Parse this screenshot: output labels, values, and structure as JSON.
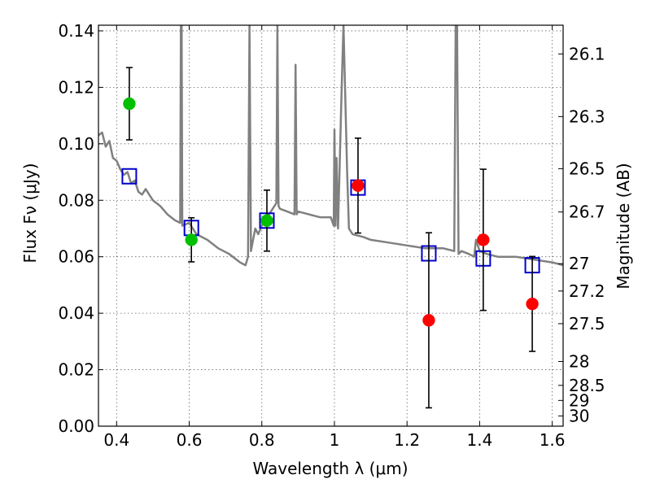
{
  "chart_data": {
    "type": "scatter",
    "xlabel": "Wavelength  λ (μm)",
    "ylabel": "Flux  Fν (μJy)",
    "ylabel_right": "Magnitude (AB)",
    "xlim": [
      0.35,
      1.63
    ],
    "ylim": [
      0.0,
      0.142
    ],
    "grid": true,
    "x_ticks": [
      0.4,
      0.6,
      0.8,
      1.0,
      1.2,
      1.4,
      1.6
    ],
    "x_tick_labels": [
      "0.4",
      "0.6",
      "0.8",
      "1",
      "1.2",
      "1.4",
      "1.6"
    ],
    "y_ticks": [
      0.0,
      0.02,
      0.04,
      0.06,
      0.08,
      0.1,
      0.12,
      0.14
    ],
    "y_tick_labels": [
      "0.00",
      "0.02",
      "0.04",
      "0.06",
      "0.08",
      "0.10",
      "0.12",
      "0.14"
    ],
    "right_ticks": [
      26.1,
      26.3,
      26.5,
      26.7,
      27,
      27.2,
      27.5,
      28,
      28.5,
      29,
      30
    ],
    "right_tick_labels": [
      "26.1",
      "26.3",
      "26.5",
      "26.7",
      "27",
      "27.2",
      "27.5",
      "28",
      "28.5",
      "29",
      "30"
    ],
    "series": [
      {
        "type": "line",
        "color": "#808080",
        "x": [
          0.35,
          0.36,
          0.37,
          0.38,
          0.39,
          0.4,
          0.41,
          0.42,
          0.43,
          0.44,
          0.45,
          0.46,
          0.47,
          0.48,
          0.5,
          0.52,
          0.54,
          0.56,
          0.575,
          0.577,
          0.579,
          0.581,
          0.6,
          0.62,
          0.65,
          0.68,
          0.71,
          0.74,
          0.755,
          0.762,
          0.766,
          0.77,
          0.776,
          0.782,
          0.79,
          0.8,
          0.81,
          0.82,
          0.83,
          0.84,
          0.843,
          0.846,
          0.85,
          0.87,
          0.89,
          0.893,
          0.896,
          0.9,
          0.93,
          0.96,
          0.99,
          0.998,
          1.0,
          1.003,
          1.006,
          1.01,
          1.02,
          1.025,
          1.035,
          1.04,
          1.05,
          1.08,
          1.1,
          1.15,
          1.2,
          1.25,
          1.3,
          1.33,
          1.334,
          1.338,
          1.342,
          1.35,
          1.37,
          1.385,
          1.39,
          1.4,
          1.42,
          1.45,
          1.5,
          1.55,
          1.6,
          1.63
        ],
        "y": [
          0.103,
          0.104,
          0.099,
          0.101,
          0.095,
          0.094,
          0.091,
          0.089,
          0.09,
          0.086,
          0.087,
          0.083,
          0.082,
          0.084,
          0.08,
          0.078,
          0.075,
          0.073,
          0.072,
          0.142,
          0.142,
          0.071,
          0.072,
          0.068,
          0.066,
          0.063,
          0.061,
          0.058,
          0.057,
          0.06,
          0.142,
          0.062,
          0.066,
          0.07,
          0.068,
          0.071,
          0.074,
          0.075,
          0.077,
          0.079,
          0.142,
          0.078,
          0.077,
          0.076,
          0.075,
          0.128,
          0.075,
          0.076,
          0.075,
          0.074,
          0.074,
          0.071,
          0.105,
          0.071,
          0.095,
          0.07,
          0.12,
          0.142,
          0.09,
          0.07,
          0.068,
          0.067,
          0.066,
          0.065,
          0.064,
          0.063,
          0.063,
          0.062,
          0.142,
          0.142,
          0.061,
          0.062,
          0.061,
          0.06,
          0.066,
          0.062,
          0.061,
          0.06,
          0.06,
          0.059,
          0.058,
          0.057
        ]
      },
      {
        "type": "markers",
        "marker": "square-open",
        "color": "#0000cc",
        "x": [
          0.435,
          0.606,
          0.814,
          1.065,
          1.26,
          1.41,
          1.545
        ],
        "y": [
          0.0885,
          0.0702,
          0.0728,
          0.0845,
          0.0612,
          0.0594,
          0.057
        ]
      },
      {
        "type": "markers",
        "marker": "circle",
        "color": "#00c000",
        "x": [
          0.435,
          0.606,
          0.814
        ],
        "y": [
          0.1142,
          0.066,
          0.0728
        ],
        "yerr": [
          0.0128,
          0.0078,
          0.0108
        ]
      },
      {
        "type": "markers",
        "marker": "circle",
        "color": "#ff0000",
        "x": [
          1.065,
          1.26,
          1.41,
          1.545
        ],
        "y": [
          0.0852,
          0.0375,
          0.066,
          0.0433
        ],
        "yerr": [
          0.0168,
          0.031,
          0.025,
          0.0168
        ]
      }
    ]
  }
}
